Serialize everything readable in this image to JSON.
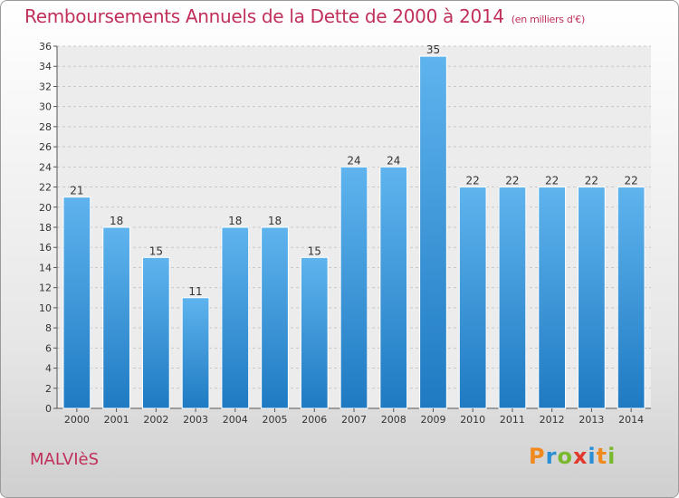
{
  "title": "Remboursements Annuels de la Dette de 2000 à 2014",
  "unit": "(en milliers d'€)",
  "commune": "MALVIèS",
  "brand": {
    "letters": [
      "P",
      "r",
      "o",
      "x",
      "i",
      "t",
      "i"
    ],
    "colors": [
      "#f08a1e",
      "#2b8fd6",
      "#7ab82e",
      "#e0392b",
      "#2b8fd6",
      "#f08a1e",
      "#7ab82e"
    ]
  },
  "colors": {
    "bar": "#4ea6e6",
    "bar_top": "#5fb4ee",
    "bar_bottom": "#1f7ac2",
    "title": "#c0305a",
    "grid": "#c8c8c8"
  },
  "chart_data": {
    "type": "bar",
    "categories": [
      "2000",
      "2001",
      "2002",
      "2003",
      "2004",
      "2005",
      "2006",
      "2007",
      "2008",
      "2009",
      "2010",
      "2011",
      "2012",
      "2013",
      "2014"
    ],
    "values": [
      21,
      18,
      15,
      11,
      18,
      18,
      15,
      24,
      24,
      35,
      22,
      22,
      22,
      22,
      22
    ],
    "ylim": [
      0,
      36
    ],
    "yticks": [
      0,
      2,
      4,
      6,
      8,
      10,
      12,
      14,
      16,
      18,
      20,
      22,
      24,
      26,
      28,
      30,
      32,
      34,
      36
    ],
    "grid": true
  }
}
